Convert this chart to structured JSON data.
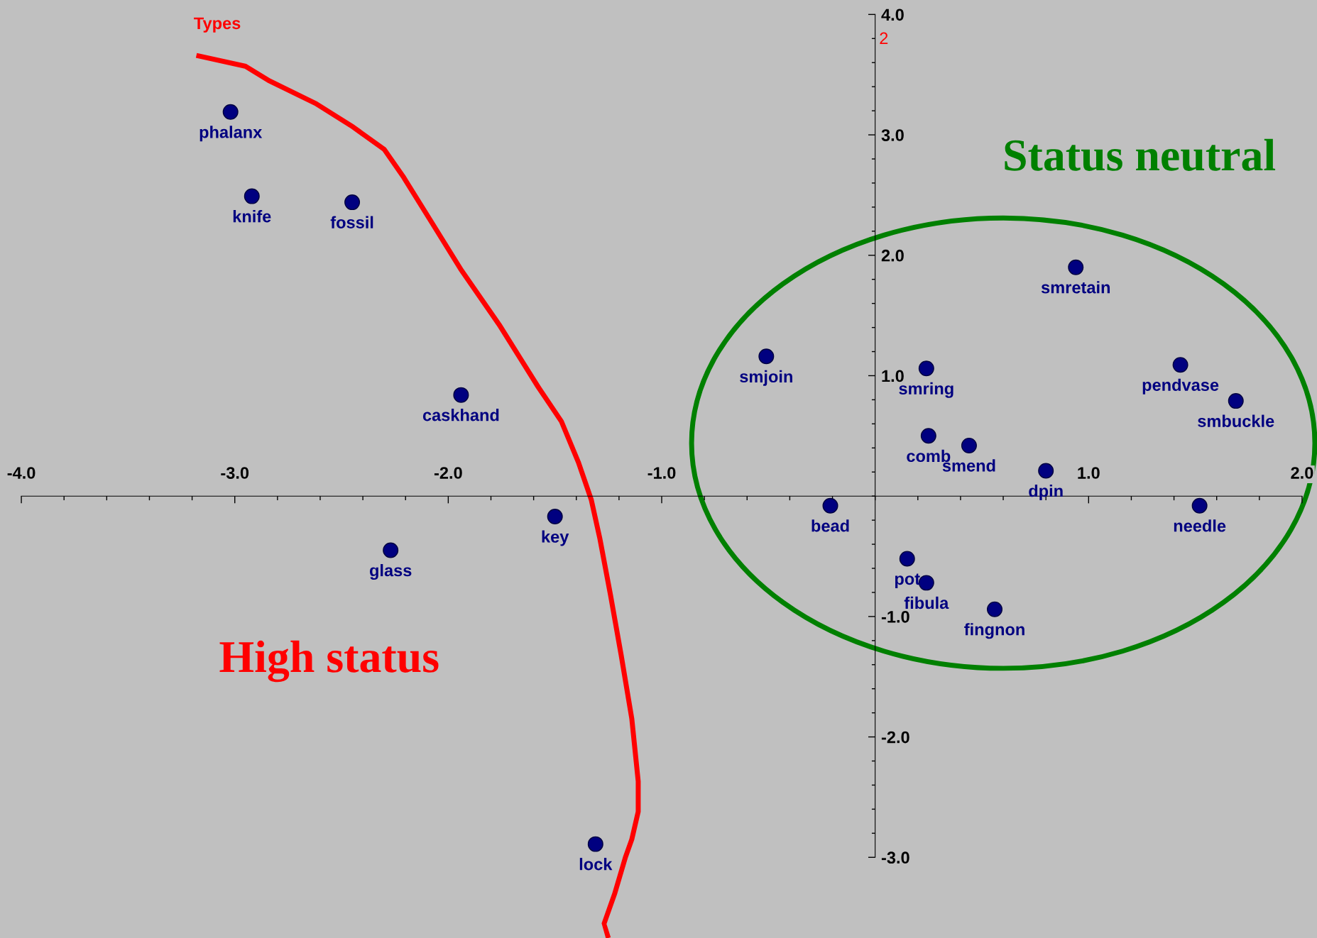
{
  "chart_data": {
    "type": "scatter",
    "title": "Types",
    "ylabel": "2",
    "marker": "circle",
    "grid": false,
    "legend": false,
    "xlim": [
      -4.1,
      2.07
    ],
    "ylim": [
      -3.67,
      4.12
    ],
    "xticks": [
      {
        "value": -4,
        "label": "-4.0"
      },
      {
        "value": -3,
        "label": "-3.0"
      },
      {
        "value": -2,
        "label": "-2.0"
      },
      {
        "value": -1,
        "label": "-1.0"
      },
      {
        "value": 1,
        "label": "1.0"
      },
      {
        "value": 2,
        "label": "2.0"
      }
    ],
    "yticks": [
      {
        "value": -3,
        "label": "-3.0"
      },
      {
        "value": -2,
        "label": "-2.0"
      },
      {
        "value": -1,
        "label": "-1.0"
      },
      {
        "value": 1,
        "label": "1.0"
      },
      {
        "value": 2,
        "label": "2.0"
      },
      {
        "value": 3,
        "label": "3.0"
      },
      {
        "value": 4,
        "label": "4.0"
      }
    ],
    "series": [
      {
        "color": "#000080",
        "x": [
          -3.02,
          -2.92,
          -2.45,
          -1.94,
          -1.5,
          -2.27,
          -1.31,
          -0.51,
          -0.21,
          0.24,
          0.25,
          0.44,
          0.8,
          0.94,
          1.43,
          1.69,
          1.52,
          0.15,
          0.24,
          0.56
        ],
        "values": [
          3.19,
          2.49,
          2.44,
          0.84,
          -0.17,
          -0.45,
          -2.89,
          1.16,
          -0.08,
          1.06,
          0.5,
          0.42,
          0.21,
          1.9,
          1.09,
          0.79,
          -0.08,
          -0.52,
          -0.72,
          -0.94
        ]
      }
    ],
    "annotations": [
      {
        "text": "phalanx",
        "x": -3.02,
        "y": 3.19
      },
      {
        "text": "knife",
        "x": -2.92,
        "y": 2.49
      },
      {
        "text": "fossil",
        "x": -2.45,
        "y": 2.44
      },
      {
        "text": "caskhand",
        "x": -1.94,
        "y": 0.84
      },
      {
        "text": "key",
        "x": -1.5,
        "y": -0.17
      },
      {
        "text": "glass",
        "x": -2.27,
        "y": -0.45
      },
      {
        "text": "lock",
        "x": -1.31,
        "y": -2.89
      },
      {
        "text": "smjoin",
        "x": -0.51,
        "y": 1.16
      },
      {
        "text": "bead",
        "x": -0.21,
        "y": -0.08
      },
      {
        "text": "smring",
        "x": 0.24,
        "y": 1.06
      },
      {
        "text": "comb",
        "x": 0.25,
        "y": 0.5
      },
      {
        "text": "smend",
        "x": 0.44,
        "y": 0.42
      },
      {
        "text": "dpin",
        "x": 0.8,
        "y": 0.21
      },
      {
        "text": "smretain",
        "x": 0.94,
        "y": 1.9
      },
      {
        "text": "pendvase",
        "x": 1.43,
        "y": 1.09
      },
      {
        "text": "smbuckle",
        "x": 1.69,
        "y": 0.79
      },
      {
        "text": "needle",
        "x": 1.52,
        "y": -0.08
      },
      {
        "text": "pot",
        "x": 0.15,
        "y": -0.52
      },
      {
        "text": "fibula",
        "x": 0.24,
        "y": -0.72
      },
      {
        "text": "fingnon",
        "x": 0.56,
        "y": -0.94
      },
      "Status neutral",
      "High status"
    ]
  }
}
